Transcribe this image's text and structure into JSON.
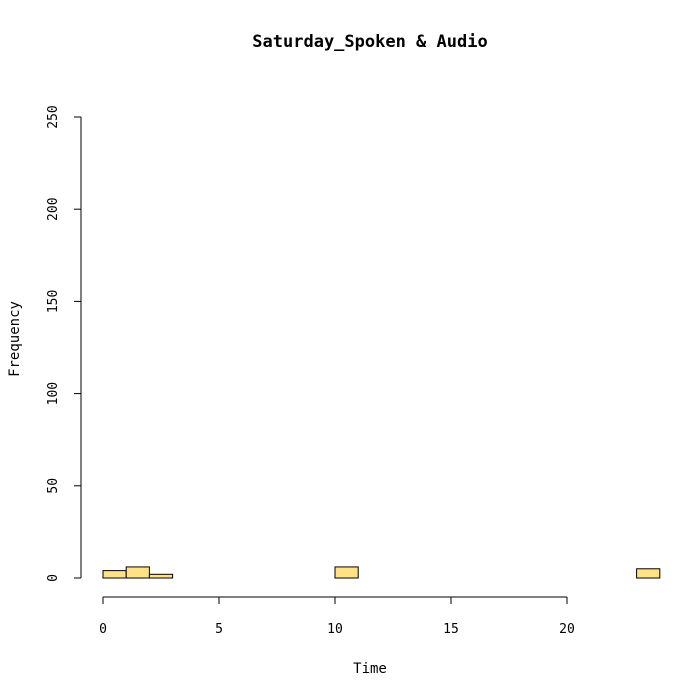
{
  "chart_data": {
    "type": "bar",
    "title": "Saturday_Spoken & Audio",
    "xlabel": "Time",
    "ylabel": "Frequency",
    "xlim": [
      0,
      24
    ],
    "ylim": [
      0,
      250
    ],
    "x_ticks": [
      0,
      5,
      10,
      15,
      20
    ],
    "y_ticks": [
      0,
      50,
      100,
      150,
      200,
      250
    ],
    "bin_width": 1,
    "bin_starts": [
      0,
      1,
      2,
      3,
      4,
      5,
      6,
      7,
      8,
      9,
      10,
      11,
      12,
      13,
      14,
      15,
      16,
      17,
      18,
      19,
      20,
      21,
      22,
      23
    ],
    "values": [
      4,
      6,
      2,
      0,
      0,
      0,
      0,
      0,
      0,
      0,
      6,
      0,
      0,
      0,
      0,
      0,
      0,
      0,
      0,
      0,
      0,
      0,
      0,
      5
    ],
    "bar_color": "#FFE285",
    "grid": false
  }
}
